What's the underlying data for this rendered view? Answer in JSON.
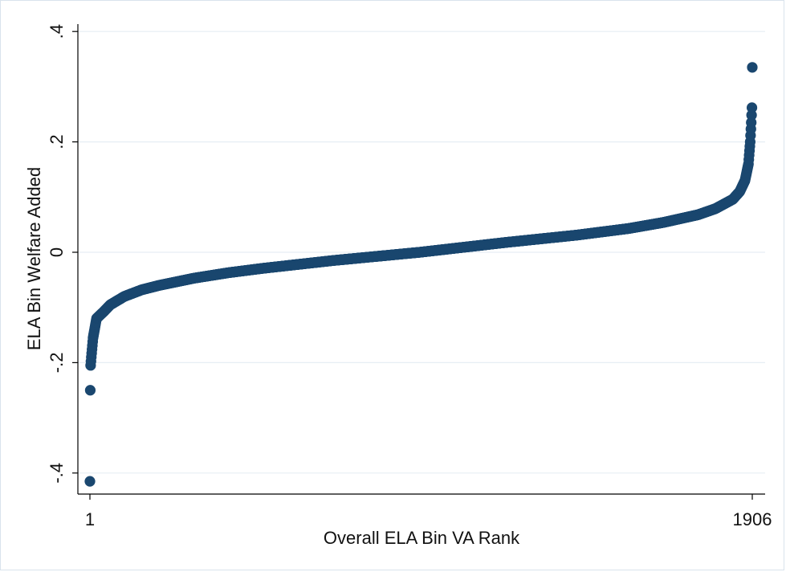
{
  "chart_data": {
    "type": "scatter",
    "title": "",
    "xlabel": "Overall ELA Bin VA Rank",
    "ylabel": "ELA Bin Welfare Added",
    "xlim": [
      1,
      1906
    ],
    "ylim": [
      -0.42,
      0.41
    ],
    "x_ticks": [
      {
        "value": 1,
        "label": "1"
      },
      {
        "value": 1906,
        "label": "1906"
      }
    ],
    "y_ticks": [
      {
        "value": -0.4,
        "label": "-.4"
      },
      {
        "value": -0.2,
        "label": "-.2"
      },
      {
        "value": 0,
        "label": "0"
      },
      {
        "value": 0.2,
        "label": ".2"
      },
      {
        "value": 0.4,
        "label": ".4"
      }
    ],
    "grid": "horizontal",
    "marker_color": "#1a476f",
    "curve_anchors": {
      "rank": [
        1,
        2,
        3,
        5,
        10,
        20,
        40,
        60,
        100,
        150,
        200,
        300,
        400,
        500,
        700,
        950,
        1200,
        1400,
        1550,
        1650,
        1750,
        1800,
        1850,
        1870,
        1885,
        1895,
        1900,
        1903,
        1905,
        1906
      ],
      "value": [
        -0.415,
        -0.25,
        -0.205,
        -0.19,
        -0.155,
        -0.12,
        -0.108,
        -0.095,
        -0.08,
        -0.068,
        -0.06,
        -0.047,
        -0.037,
        -0.029,
        -0.015,
        0.0,
        0.018,
        0.031,
        0.043,
        0.054,
        0.068,
        0.079,
        0.096,
        0.11,
        0.13,
        0.16,
        0.2,
        0.235,
        0.262,
        0.335
      ]
    },
    "n_points": 1906
  }
}
